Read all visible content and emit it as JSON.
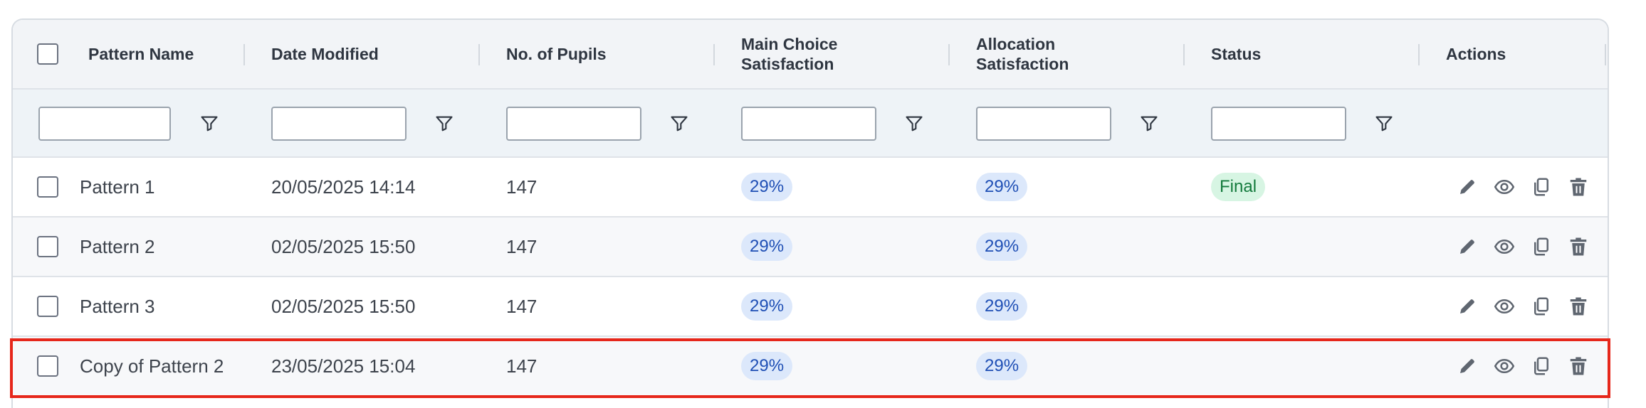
{
  "columns": {
    "pattern_name": "Pattern Name",
    "date_modified": "Date Modified",
    "pupils": "No. of Pupils",
    "main_choice_l1": "Main Choice",
    "main_choice_l2": "Satisfaction",
    "allocation_l1": "Allocation",
    "allocation_l2": "Satisfaction",
    "status": "Status",
    "actions": "Actions"
  },
  "rows": [
    {
      "name": "Pattern 1",
      "date": "20/05/2025 14:14",
      "pupils": "147",
      "main": "29%",
      "alloc": "29%",
      "status": "Final"
    },
    {
      "name": "Pattern 2",
      "date": "02/05/2025 15:50",
      "pupils": "147",
      "main": "29%",
      "alloc": "29%",
      "status": ""
    },
    {
      "name": "Pattern 3",
      "date": "02/05/2025 15:50",
      "pupils": "147",
      "main": "29%",
      "alloc": "29%",
      "status": ""
    },
    {
      "name": "Copy of Pattern 2",
      "date": "23/05/2025 15:04",
      "pupils": "147",
      "main": "29%",
      "alloc": "29%",
      "status": ""
    }
  ],
  "icons": {
    "edit": "pencil-icon",
    "view": "eye-icon",
    "copy": "copy-icon",
    "delete": "trash-icon",
    "filter": "filter-icon"
  },
  "colors": {
    "pill_bg": "#dce8fb",
    "pill_text": "#1f4fb5",
    "final_bg": "#d7f5e3",
    "final_text": "#137a3c",
    "highlight": "#e6271b"
  }
}
